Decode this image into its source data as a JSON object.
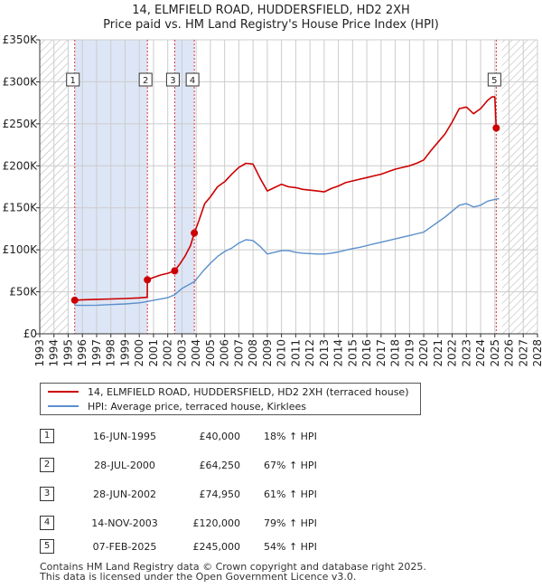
{
  "title_line1": "14, ELMFIELD ROAD, HUDDERSFIELD, HD2 2XH",
  "title_line2": "Price paid vs. HM Land Registry's House Price Index (HPI)",
  "colors": {
    "property": "#cc0000",
    "hpi": "#5b8fcc",
    "shade": "#dde6f6",
    "grid": "#cccccc",
    "hatch": "#bbbbbb"
  },
  "chart_data": {
    "type": "line",
    "xlim": [
      1993,
      2028
    ],
    "ylim": [
      0,
      350000
    ],
    "y_ticks": [
      {
        "value": 0,
        "label": "£0"
      },
      {
        "value": 50000,
        "label": "£50K"
      },
      {
        "value": 100000,
        "label": "£100K"
      },
      {
        "value": 150000,
        "label": "£150K"
      },
      {
        "value": 200000,
        "label": "£200K"
      },
      {
        "value": 250000,
        "label": "£250K"
      },
      {
        "value": 300000,
        "label": "£300K"
      },
      {
        "value": 350000,
        "label": "£350K"
      }
    ],
    "x_ticks": [
      "1993",
      "1994",
      "1995",
      "1996",
      "1997",
      "1998",
      "1999",
      "2000",
      "2001",
      "2002",
      "2003",
      "2004",
      "2005",
      "2006",
      "2007",
      "2008",
      "2009",
      "2010",
      "2011",
      "2012",
      "2013",
      "2014",
      "2015",
      "2016",
      "2017",
      "2018",
      "2019",
      "2020",
      "2021",
      "2022",
      "2023",
      "2024",
      "2025",
      "2026",
      "2027",
      "2028"
    ],
    "hatched_ranges": [
      [
        1993,
        1995.0
      ],
      [
        2025.5,
        2028
      ]
    ],
    "shaded_ranges": [
      [
        1995.46,
        2000.57
      ],
      [
        2002.49,
        2003.87
      ]
    ],
    "sales": [
      {
        "num": "1",
        "x": 1995.46,
        "y": 40000
      },
      {
        "num": "2",
        "x": 2000.57,
        "y": 64250
      },
      {
        "num": "3",
        "x": 2002.49,
        "y": 74950
      },
      {
        "num": "4",
        "x": 2003.87,
        "y": 120000
      },
      {
        "num": "5",
        "x": 2025.1,
        "y": 245000
      }
    ],
    "series": [
      {
        "name": "14, ELMFIELD ROAD, HUDDERSFIELD, HD2 2XH (terraced house)",
        "points": [
          [
            1995.46,
            40000
          ],
          [
            1996,
            40500
          ],
          [
            1997,
            41000
          ],
          [
            1998,
            41500
          ],
          [
            1999,
            42000
          ],
          [
            2000,
            42800
          ],
          [
            2000.56,
            43500
          ],
          [
            2000.57,
            64250
          ],
          [
            2001,
            67000
          ],
          [
            2001.5,
            70000
          ],
          [
            2002,
            72000
          ],
          [
            2002.49,
            74950
          ],
          [
            2002.8,
            82000
          ],
          [
            2003.2,
            92000
          ],
          [
            2003.6,
            105000
          ],
          [
            2003.87,
            120000
          ],
          [
            2004.2,
            135000
          ],
          [
            2004.6,
            155000
          ],
          [
            2005,
            163000
          ],
          [
            2005.5,
            175000
          ],
          [
            2006,
            181000
          ],
          [
            2006.5,
            190000
          ],
          [
            2007,
            198000
          ],
          [
            2007.5,
            203000
          ],
          [
            2008,
            202000
          ],
          [
            2008.5,
            185000
          ],
          [
            2009,
            170000
          ],
          [
            2009.5,
            174000
          ],
          [
            2010,
            178000
          ],
          [
            2010.5,
            175000
          ],
          [
            2011,
            174000
          ],
          [
            2011.5,
            172000
          ],
          [
            2012,
            171000
          ],
          [
            2012.5,
            170000
          ],
          [
            2013,
            169000
          ],
          [
            2013.5,
            173000
          ],
          [
            2014,
            176000
          ],
          [
            2014.5,
            180000
          ],
          [
            2015,
            182000
          ],
          [
            2015.5,
            184000
          ],
          [
            2016,
            186000
          ],
          [
            2016.5,
            188000
          ],
          [
            2017,
            190000
          ],
          [
            2017.5,
            193000
          ],
          [
            2018,
            196000
          ],
          [
            2018.5,
            198000
          ],
          [
            2019,
            200000
          ],
          [
            2019.5,
            203000
          ],
          [
            2020,
            207000
          ],
          [
            2020.5,
            218000
          ],
          [
            2021,
            228000
          ],
          [
            2021.5,
            238000
          ],
          [
            2022,
            252000
          ],
          [
            2022.5,
            268000
          ],
          [
            2023,
            270000
          ],
          [
            2023.5,
            262000
          ],
          [
            2024,
            268000
          ],
          [
            2024.5,
            278000
          ],
          [
            2024.8,
            282000
          ],
          [
            2025.0,
            282000
          ],
          [
            2025.1,
            245000
          ]
        ]
      },
      {
        "name": "HPI: Average price, terraced house, Kirklees",
        "points": [
          [
            1995.46,
            34000
          ],
          [
            1996,
            33800
          ],
          [
            1997,
            34000
          ],
          [
            1998,
            34800
          ],
          [
            1999,
            35500
          ],
          [
            2000,
            36800
          ],
          [
            2000.57,
            38500
          ],
          [
            2001,
            40000
          ],
          [
            2002,
            43000
          ],
          [
            2002.49,
            46500
          ],
          [
            2003,
            54000
          ],
          [
            2003.87,
            62000
          ],
          [
            2004.5,
            75000
          ],
          [
            2005,
            84000
          ],
          [
            2005.5,
            92000
          ],
          [
            2006,
            98000
          ],
          [
            2006.5,
            102000
          ],
          [
            2007,
            108000
          ],
          [
            2007.5,
            112000
          ],
          [
            2008,
            111000
          ],
          [
            2008.5,
            104000
          ],
          [
            2009,
            95000
          ],
          [
            2009.5,
            97000
          ],
          [
            2010,
            99000
          ],
          [
            2010.5,
            99000
          ],
          [
            2011,
            97000
          ],
          [
            2011.5,
            96000
          ],
          [
            2012,
            95500
          ],
          [
            2012.5,
            95000
          ],
          [
            2013,
            95000
          ],
          [
            2013.5,
            96000
          ],
          [
            2014,
            97500
          ],
          [
            2014.5,
            99500
          ],
          [
            2015,
            101500
          ],
          [
            2015.5,
            103000
          ],
          [
            2016,
            105000
          ],
          [
            2016.5,
            107000
          ],
          [
            2017,
            109000
          ],
          [
            2017.5,
            111000
          ],
          [
            2018,
            113000
          ],
          [
            2018.5,
            115000
          ],
          [
            2019,
            117000
          ],
          [
            2019.5,
            119000
          ],
          [
            2020,
            121000
          ],
          [
            2020.5,
            127000
          ],
          [
            2021,
            133000
          ],
          [
            2021.5,
            139000
          ],
          [
            2022,
            146000
          ],
          [
            2022.5,
            153000
          ],
          [
            2023,
            155000
          ],
          [
            2023.5,
            151000
          ],
          [
            2024,
            153000
          ],
          [
            2024.5,
            158000
          ],
          [
            2025,
            160000
          ],
          [
            2025.3,
            161000
          ]
        ]
      }
    ]
  },
  "legend": {
    "property_label": "14, ELMFIELD ROAD, HUDDERSFIELD, HD2 2XH (terraced house)",
    "hpi_label": "HPI: Average price, terraced house, Kirklees"
  },
  "sales_table": [
    {
      "num": "1",
      "date": "16-JUN-1995",
      "price": "£40,000",
      "hpi": "18% ↑ HPI"
    },
    {
      "num": "2",
      "date": "28-JUL-2000",
      "price": "£64,250",
      "hpi": "67% ↑ HPI"
    },
    {
      "num": "3",
      "date": "28-JUN-2002",
      "price": "£74,950",
      "hpi": "61% ↑ HPI"
    },
    {
      "num": "4",
      "date": "14-NOV-2003",
      "price": "£120,000",
      "hpi": "79% ↑ HPI"
    },
    {
      "num": "5",
      "date": "07-FEB-2025",
      "price": "£245,000",
      "hpi": "54% ↑ HPI"
    }
  ],
  "footer_line1": "Contains HM Land Registry data © Crown copyright and database right 2025.",
  "footer_line2": "This data is licensed under the Open Government Licence v3.0."
}
